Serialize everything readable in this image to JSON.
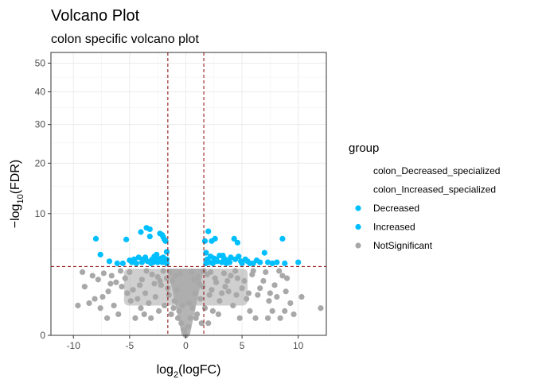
{
  "chart_data": {
    "type": "scatter",
    "title": "Volcano Plot",
    "subtitle": "colon specific volcano plot",
    "xlabel": {
      "base": "log",
      "sub": "2",
      "rest": "(logFC)"
    },
    "ylabel": {
      "prefix": "−log",
      "sub": "10",
      "rest": "(FDR)"
    },
    "xlim": [
      -12,
      12.5
    ],
    "xticks": [
      -10,
      -5,
      0,
      5,
      10
    ],
    "yscale": "sqrt",
    "ylim": [
      0,
      54
    ],
    "yticks": [
      0,
      10,
      20,
      30,
      40,
      50
    ],
    "grid": true,
    "thresholds": {
      "x": [
        -1.6,
        1.6
      ],
      "y": 3.2,
      "color": "#8b0000"
    },
    "colors": {
      "Decreased": "#00bfff",
      "Increased": "#00bfff",
      "NotSignificant": "#a8a8a8"
    },
    "legend": {
      "title": "group",
      "placement": "right",
      "entries": [
        {
          "label": "colon_Decreased_specialized",
          "marker": false
        },
        {
          "label": "colon_Increased_specialized",
          "marker": false
        },
        {
          "label": "Decreased",
          "marker": true,
          "color": "#00bfff"
        },
        {
          "label": "Increased",
          "marker": true,
          "color": "#00bfff"
        },
        {
          "label": "NotSignificant",
          "marker": true,
          "color": "#a8a8a8"
        }
      ]
    },
    "series": [
      {
        "name": "Decreased",
        "points": [
          [
            -8.0,
            6.3
          ],
          [
            -7.6,
            4.4
          ],
          [
            -6.8,
            3.7
          ],
          [
            -6.1,
            3.5
          ],
          [
            -5.3,
            6.2
          ],
          [
            -5.0,
            3.8
          ],
          [
            -4.6,
            3.9
          ],
          [
            -4.0,
            7.2
          ],
          [
            -3.5,
            7.8
          ],
          [
            -3.2,
            6.6
          ],
          [
            -3.2,
            7.6
          ],
          [
            -2.8,
            4.2
          ],
          [
            -2.5,
            3.6
          ],
          [
            -2.3,
            7.0
          ],
          [
            -2.1,
            6.8
          ],
          [
            -2.0,
            6.5
          ],
          [
            -1.9,
            6.2
          ],
          [
            -1.8,
            6.0
          ],
          [
            -1.7,
            4.7
          ],
          [
            -4.2,
            4.1
          ],
          [
            -3.8,
            3.9
          ],
          [
            -3.4,
            3.7
          ],
          [
            -3.0,
            3.9
          ],
          [
            -2.7,
            3.8
          ],
          [
            -2.2,
            4.0
          ],
          [
            -1.9,
            3.7
          ],
          [
            -1.7,
            3.5
          ],
          [
            -1.7,
            3.9
          ],
          [
            -4.8,
            3.6
          ],
          [
            -4.4,
            3.5
          ],
          [
            -3.6,
            4.1
          ],
          [
            -2.6,
            4.4
          ],
          [
            -2.4,
            3.9
          ],
          [
            -2.0,
            4.1
          ],
          [
            -5.6,
            3.5
          ],
          [
            -3.1,
            3.5
          ],
          [
            -2.9,
            3.6
          ],
          [
            -2.1,
            3.6
          ],
          [
            -1.8,
            3.8
          ],
          [
            -3.9,
            3.6
          ]
        ]
      },
      {
        "name": "Increased",
        "points": [
          [
            1.7,
            6.0
          ],
          [
            1.8,
            4.6
          ],
          [
            2.0,
            7.3
          ],
          [
            2.3,
            6.0
          ],
          [
            2.5,
            4.0
          ],
          [
            2.6,
            6.3
          ],
          [
            2.8,
            3.7
          ],
          [
            3.0,
            4.3
          ],
          [
            3.4,
            4.0
          ],
          [
            3.7,
            3.8
          ],
          [
            4.0,
            4.1
          ],
          [
            4.3,
            6.3
          ],
          [
            4.6,
            5.8
          ],
          [
            4.9,
            3.7
          ],
          [
            5.3,
            3.9
          ],
          [
            5.7,
            3.5
          ],
          [
            6.3,
            3.8
          ],
          [
            7.0,
            4.6
          ],
          [
            7.3,
            3.6
          ],
          [
            8.1,
            3.6
          ],
          [
            8.6,
            6.3
          ],
          [
            8.8,
            3.5
          ],
          [
            10.0,
            3.6
          ],
          [
            1.8,
            3.5
          ],
          [
            1.9,
            3.9
          ],
          [
            2.1,
            3.6
          ],
          [
            2.2,
            4.2
          ],
          [
            2.4,
            3.5
          ],
          [
            2.7,
            3.9
          ],
          [
            3.2,
            3.6
          ],
          [
            3.6,
            3.5
          ],
          [
            3.9,
            3.6
          ],
          [
            4.4,
            3.9
          ],
          [
            4.7,
            4.2
          ],
          [
            5.0,
            3.5
          ],
          [
            5.5,
            3.7
          ],
          [
            6.0,
            3.5
          ],
          [
            6.6,
            3.6
          ],
          [
            7.7,
            3.5
          ],
          [
            3.3,
            4.3
          ]
        ]
      },
      {
        "name": "NotSignificant",
        "points": [
          [
            -9.2,
            2.7
          ],
          [
            -9.6,
            0.6
          ],
          [
            -8.1,
            0.9
          ],
          [
            -7.4,
            1.0
          ],
          [
            -7.3,
            2.6
          ],
          [
            -6.6,
            2.4
          ],
          [
            -6.2,
            1.9
          ],
          [
            -5.7,
            1.6
          ],
          [
            -5.2,
            1.2
          ],
          [
            -4.7,
            1.4
          ],
          [
            -4.3,
            0.9
          ],
          [
            -3.9,
            2.1
          ],
          [
            -3.6,
            1.2
          ],
          [
            -3.3,
            0.7
          ],
          [
            -3.0,
            2.5
          ],
          [
            -2.7,
            1.0
          ],
          [
            -2.4,
            0.4
          ],
          [
            -2.2,
            1.7
          ],
          [
            -1.9,
            0.6
          ],
          [
            -1.7,
            2.2
          ],
          [
            -1.5,
            1.1
          ],
          [
            -1.3,
            0.3
          ],
          [
            -1.2,
            2.0
          ],
          [
            -1.0,
            0.8
          ],
          [
            -0.8,
            1.4
          ],
          [
            -0.6,
            0.4
          ],
          [
            -0.5,
            2.6
          ],
          [
            -0.4,
            0.1
          ],
          [
            -0.2,
            0.02
          ],
          [
            0.0,
            0.0
          ],
          [
            0.2,
            0.05
          ],
          [
            0.4,
            0.2
          ],
          [
            0.5,
            2.7
          ],
          [
            0.6,
            0.5
          ],
          [
            0.8,
            1.2
          ],
          [
            1.0,
            0.3
          ],
          [
            1.1,
            2.3
          ],
          [
            1.3,
            0.9
          ],
          [
            1.5,
            1.6
          ],
          [
            1.7,
            0.5
          ],
          [
            1.9,
            2.5
          ],
          [
            2.1,
            1.1
          ],
          [
            2.4,
            0.4
          ],
          [
            2.7,
            1.9
          ],
          [
            3.0,
            0.8
          ],
          [
            3.4,
            2.6
          ],
          [
            3.8,
            1.3
          ],
          [
            4.2,
            0.6
          ],
          [
            4.6,
            2.2
          ],
          [
            5.0,
            1.5
          ],
          [
            5.4,
            0.9
          ],
          [
            5.9,
            2.5
          ],
          [
            6.4,
            1.1
          ],
          [
            6.9,
            2.0
          ],
          [
            7.4,
            0.8
          ],
          [
            7.9,
            1.7
          ],
          [
            8.3,
            2.8
          ],
          [
            8.6,
            2.4
          ],
          [
            8.9,
            1.3
          ],
          [
            9.3,
            0.7
          ],
          [
            10.3,
            1.0
          ],
          [
            12.0,
            0.5
          ],
          [
            -8.6,
            0.7
          ],
          [
            -6.9,
            1.3
          ],
          [
            -5.0,
            2.7
          ],
          [
            -4.0,
            0.5
          ],
          [
            -3.5,
            2.8
          ],
          [
            -2.8,
            1.8
          ],
          [
            -2.0,
            2.8
          ],
          [
            -1.6,
            1.5
          ],
          [
            -0.9,
            2.4
          ],
          [
            -0.7,
            0.2
          ],
          [
            -0.3,
            0.6
          ],
          [
            0.3,
            0.7
          ],
          [
            0.7,
            2.1
          ],
          [
            0.9,
            0.2
          ],
          [
            1.2,
            1.8
          ],
          [
            1.6,
            2.8
          ],
          [
            2.2,
            2.7
          ],
          [
            2.9,
            0.3
          ],
          [
            3.5,
            1.6
          ],
          [
            4.4,
            2.8
          ],
          [
            5.7,
            0.4
          ],
          [
            6.6,
            1.5
          ],
          [
            7.1,
            2.7
          ],
          [
            7.7,
            0.4
          ],
          [
            8.1,
            1.0
          ],
          [
            -9.0,
            1.6
          ],
          [
            -7.8,
            2.1
          ],
          [
            -6.0,
            0.3
          ],
          [
            -5.4,
            2.2
          ],
          [
            -4.5,
            0.2
          ],
          [
            -3.1,
            0.2
          ],
          [
            -2.5,
            2.3
          ],
          [
            -1.4,
            2.7
          ],
          [
            -1.1,
            0.5
          ],
          [
            1.4,
            0.1
          ],
          [
            2.0,
            0.1
          ],
          [
            2.6,
            2.2
          ],
          [
            3.2,
            1.2
          ],
          [
            4.0,
            2.4
          ],
          [
            4.8,
            0.2
          ],
          [
            5.2,
            2.0
          ],
          [
            6.2,
            0.2
          ],
          [
            7.5,
            1.2
          ],
          [
            8.4,
            0.2
          ],
          [
            9.0,
            2.2
          ],
          [
            -6.4,
            0.6
          ],
          [
            -7.0,
            0.2
          ],
          [
            -8.3,
            2.4
          ],
          [
            9.6,
            0.3
          ],
          [
            6.0,
            2.8
          ],
          [
            -5.8,
            2.8
          ],
          [
            -4.1,
            1.7
          ],
          [
            3.7,
            2.0
          ],
          [
            -2.3,
            2.0
          ],
          [
            2.3,
            1.4
          ],
          [
            -3.7,
            0.3
          ],
          [
            4.5,
            1.1
          ],
          [
            -4.9,
            0.8
          ],
          [
            5.6,
            1.2
          ],
          [
            -6.7,
            1.8
          ],
          [
            7.3,
            0.2
          ],
          [
            -7.6,
            0.5
          ],
          [
            8.8,
            0.4
          ],
          [
            -0.1,
            0.01
          ]
        ]
      }
    ]
  }
}
